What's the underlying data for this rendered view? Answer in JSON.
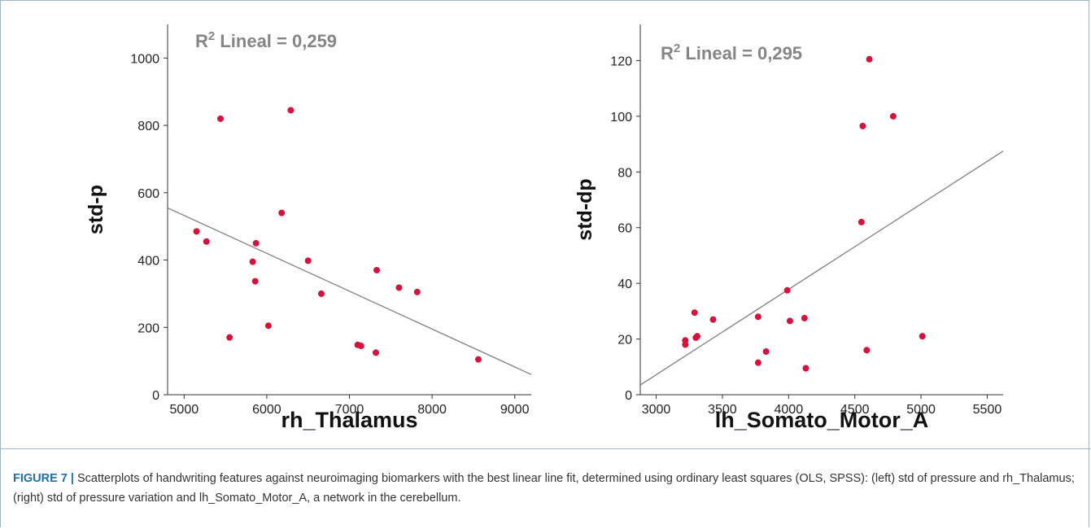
{
  "chart_data": [
    {
      "type": "scatter",
      "annotation_prefix": "R",
      "annotation_sup": "2",
      "annotation_rest": " Lineal = 0,259",
      "xlabel": "rh_Thalamus",
      "ylabel": "std-p",
      "xlim": [
        4800,
        9200
      ],
      "ylim": [
        0,
        1100
      ],
      "xticks": [
        "5000",
        "6000",
        "7000",
        "8000",
        "9000"
      ],
      "yticks": [
        "0",
        "200",
        "400",
        "600",
        "800",
        "1000"
      ],
      "x": [
        5150,
        5270,
        5440,
        5550,
        5830,
        5860,
        5870,
        6020,
        6180,
        6290,
        6500,
        6660,
        7100,
        7140,
        7320,
        7330,
        7600,
        7820,
        8560
      ],
      "y": [
        485,
        455,
        820,
        170,
        395,
        337,
        450,
        205,
        540,
        845,
        398,
        300,
        148,
        145,
        125,
        370,
        318,
        305,
        105
      ],
      "fit_line": {
        "x": [
          4800,
          9200
        ],
        "y": [
          555,
          60
        ]
      },
      "marker_color": "#d6123a",
      "line_color": "#808080"
    },
    {
      "type": "scatter",
      "annotation_prefix": "R",
      "annotation_sup": "2",
      "annotation_rest": " Lineal = 0,295",
      "xlabel": "lh_Somato_Motor_A",
      "ylabel": "std-dp",
      "xlim": [
        2880,
        5620
      ],
      "ylim": [
        0,
        133
      ],
      "xticks": [
        "3000",
        "3500",
        "4000",
        "4500",
        "5000",
        "5500"
      ],
      "yticks": [
        "0",
        "20",
        "40",
        "60",
        "80",
        "100",
        "120"
      ],
      "x": [
        3220,
        3220,
        3290,
        3300,
        3310,
        3430,
        3770,
        3770,
        3830,
        3990,
        4010,
        4120,
        4130,
        4550,
        4560,
        4590,
        4610,
        4790,
        5010
      ],
      "y": [
        18,
        19.5,
        29.5,
        20.5,
        21,
        27,
        28,
        11.5,
        15.5,
        37.5,
        26.5,
        27.5,
        9.5,
        62,
        96.5,
        16,
        120.5,
        100,
        21
      ],
      "fit_line": {
        "x": [
          2880,
          5620
        ],
        "y": [
          3.5,
          87.5
        ]
      },
      "marker_color": "#d6123a",
      "line_color": "#808080"
    }
  ],
  "caption": {
    "label": "FIGURE 7 |",
    "text": " Scatterplots of handwriting features against neuroimaging biomarkers with the best linear line fit, determined using ordinary least squares (OLS, SPSS): (left) std of pressure and rh_Thalamus; (right) std of pressure variation and lh_Somato_Motor_A, a network in the cerebellum."
  }
}
